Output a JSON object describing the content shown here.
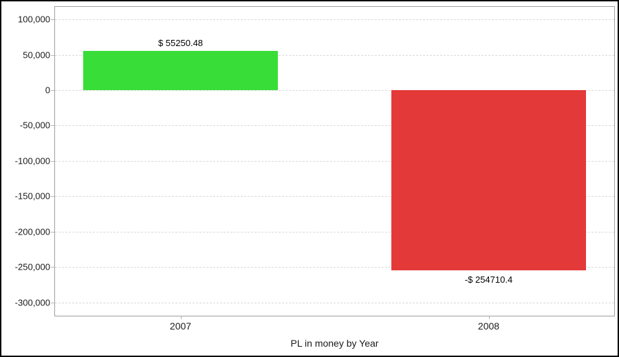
{
  "chart_data": {
    "type": "bar",
    "title": "",
    "xlabel": "PL in money by Year",
    "ylabel": "",
    "categories": [
      "2007",
      "2008"
    ],
    "values": [
      55250.48,
      -254710.4
    ],
    "bar_labels": [
      "$ 55250.48",
      "-$ 254710.4"
    ],
    "bar_colors": [
      "#38dd38",
      "#e43939"
    ],
    "y_ticks": [
      100000,
      50000,
      0,
      -50000,
      -100000,
      -150000,
      -200000,
      -250000,
      -300000
    ],
    "y_tick_labels": [
      "100,000",
      "50,000",
      "0",
      "-50,000",
      "-100,000",
      "-150,000",
      "-200,000",
      "-250,000",
      "-300,000"
    ],
    "ylim": [
      -318500,
      117500
    ],
    "grid": "horizontal-dashed",
    "legend": "none",
    "colors": {
      "positive_bar": "#38dd38",
      "negative_bar": "#e43939",
      "gridline": "#d9d9d9",
      "axis_border": "#9e9e9e",
      "tick_mark": "#b4b4b4",
      "text": "#1a1a1a",
      "background": "#ffffff",
      "outer_border": "#000000"
    }
  }
}
